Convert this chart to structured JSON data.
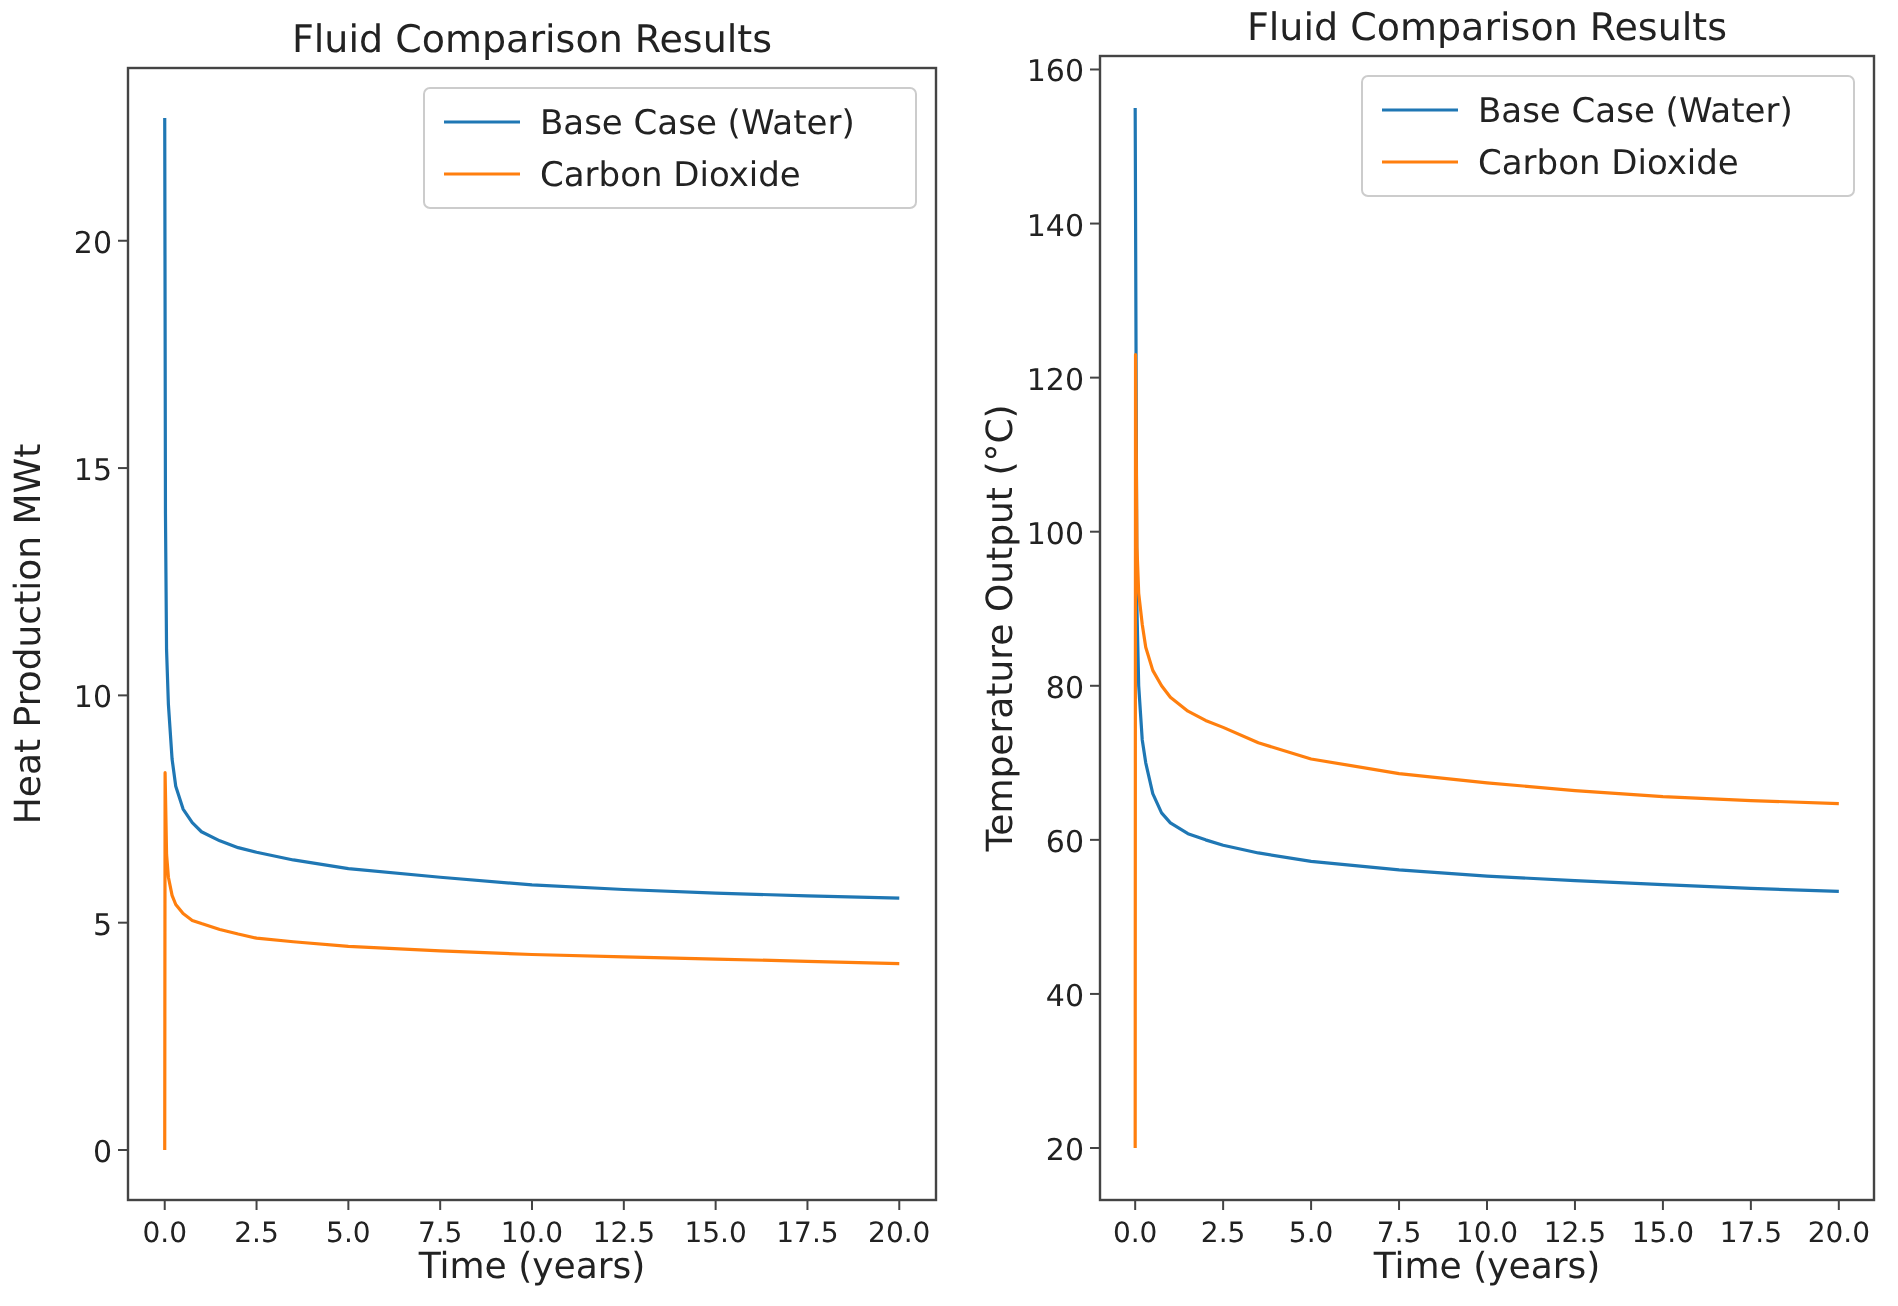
{
  "chart_data": [
    {
      "type": "line",
      "title": "Fluid Comparison Results",
      "xlabel": "Time (years)",
      "ylabel": "Heat Production MWt",
      "xlim": [
        -1,
        21
      ],
      "ylim": [
        -1.1,
        23.8
      ],
      "xticks": [
        {
          "value": 0,
          "label": "0.0"
        },
        {
          "value": 2.5,
          "label": "2.5"
        },
        {
          "value": 5,
          "label": "5.0"
        },
        {
          "value": 7.5,
          "label": "7.5"
        },
        {
          "value": 10,
          "label": "10.0"
        },
        {
          "value": 12.5,
          "label": "12.5"
        },
        {
          "value": 15,
          "label": "15.0"
        },
        {
          "value": 17.5,
          "label": "17.5"
        },
        {
          "value": 20,
          "label": "20.0"
        }
      ],
      "yticks": [
        0,
        5,
        10,
        15,
        20
      ],
      "legend": "top right",
      "grid": false,
      "series": [
        {
          "name": "Base Case (Water)",
          "color": "#1f77b4",
          "x": [
            0,
            0.02,
            0.05,
            0.1,
            0.2,
            0.3,
            0.5,
            0.75,
            1,
            1.5,
            2,
            2.5,
            3.5,
            5,
            7.5,
            10,
            12.5,
            15,
            17.5,
            20
          ],
          "values": [
            22.7,
            14,
            11,
            9.8,
            8.6,
            8.0,
            7.5,
            7.2,
            7.0,
            6.8,
            6.65,
            6.55,
            6.38,
            6.19,
            6.0,
            5.83,
            5.73,
            5.65,
            5.59,
            5.54
          ]
        },
        {
          "name": "Carbon Dioxide",
          "color": "#ff7f0e",
          "x": [
            0,
            0.01,
            0.05,
            0.1,
            0.2,
            0.3,
            0.5,
            0.75,
            1,
            1.5,
            2,
            2.5,
            3.5,
            5,
            7.5,
            10,
            12.5,
            15,
            17.5,
            20
          ],
          "values": [
            0,
            8.3,
            6.5,
            6.0,
            5.6,
            5.4,
            5.2,
            5.05,
            4.98,
            4.85,
            4.75,
            4.66,
            4.58,
            4.48,
            4.38,
            4.3,
            4.25,
            4.2,
            4.15,
            4.1
          ]
        }
      ]
    },
    {
      "type": "line",
      "title": "Fluid Comparison Results",
      "xlabel": "Time (years)",
      "ylabel": "Temperature Output (°C)",
      "xlim": [
        -1,
        21
      ],
      "ylim": [
        13.25,
        161.75
      ],
      "xticks": [
        {
          "value": 0,
          "label": "0.0"
        },
        {
          "value": 2.5,
          "label": "2.5"
        },
        {
          "value": 5,
          "label": "5.0"
        },
        {
          "value": 7.5,
          "label": "7.5"
        },
        {
          "value": 10,
          "label": "10.0"
        },
        {
          "value": 12.5,
          "label": "12.5"
        },
        {
          "value": 15,
          "label": "15.0"
        },
        {
          "value": 17.5,
          "label": "17.5"
        },
        {
          "value": 20,
          "label": "20.0"
        }
      ],
      "yticks": [
        20,
        40,
        60,
        80,
        100,
        120,
        140,
        160
      ],
      "legend": "top right",
      "grid": false,
      "series": [
        {
          "name": "Base Case (Water)",
          "color": "#1f77b4",
          "x": [
            0,
            0.05,
            0.1,
            0.2,
            0.3,
            0.5,
            0.75,
            1,
            1.5,
            2,
            2.5,
            3.5,
            5,
            7.5,
            10,
            12.5,
            15,
            17.5,
            20
          ],
          "values": [
            155,
            90,
            80,
            73,
            70,
            66,
            63.5,
            62.2,
            60.8,
            60,
            59.3,
            58.3,
            57.2,
            56.1,
            55.3,
            54.7,
            54.2,
            53.7,
            53.3
          ]
        },
        {
          "name": "Carbon Dioxide",
          "color": "#ff7f0e",
          "x": [
            0,
            0.01,
            0.05,
            0.1,
            0.2,
            0.3,
            0.5,
            0.75,
            1,
            1.5,
            2,
            2.5,
            3.5,
            5,
            7.5,
            10,
            12.5,
            15,
            17.5,
            20
          ],
          "values": [
            20,
            123,
            98,
            92,
            88,
            85,
            82,
            80,
            78.5,
            76.7,
            75.5,
            74.6,
            72.6,
            70.5,
            68.6,
            67.4,
            66.4,
            65.6,
            65.1,
            64.7
          ]
        }
      ]
    }
  ]
}
